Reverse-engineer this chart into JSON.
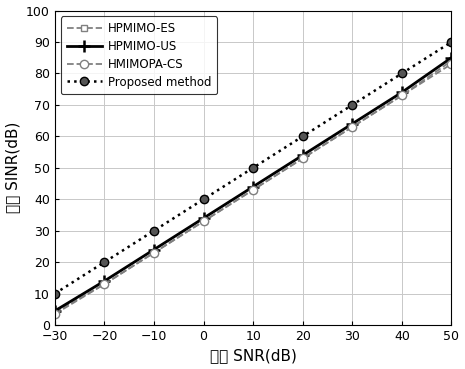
{
  "x": [
    -30,
    -20,
    -10,
    0,
    10,
    20,
    30,
    40,
    50
  ],
  "HPMIMO_ES": [
    4,
    13,
    23,
    33,
    43,
    53,
    63,
    73,
    84
  ],
  "HPMIMO_US": [
    4.5,
    14,
    24,
    34,
    44,
    54,
    64,
    74,
    85
  ],
  "HMIMOPA_CS": [
    3.5,
    13,
    23,
    33,
    43,
    53,
    63,
    73,
    83
  ],
  "Proposed": [
    10,
    20,
    30,
    40,
    50,
    60,
    70,
    80,
    90
  ],
  "xlabel": "输入 SNR(dB)",
  "ylabel": "输出 SINR(dB)",
  "xlim": [
    -30,
    50
  ],
  "ylim": [
    0,
    100
  ],
  "xticks": [
    -30,
    -20,
    -10,
    0,
    10,
    20,
    30,
    40,
    50
  ],
  "yticks": [
    0,
    10,
    20,
    30,
    40,
    50,
    60,
    70,
    80,
    90,
    100
  ],
  "legend_labels": [
    "HPMIMO-ES",
    "HPMIMO-US",
    "HMIMOPA-CS",
    "Proposed method"
  ],
  "bg_color": "#ffffff",
  "grid_color": "#c8c8c8",
  "line_color_gray": "#808080",
  "line_color_black": "#000000"
}
